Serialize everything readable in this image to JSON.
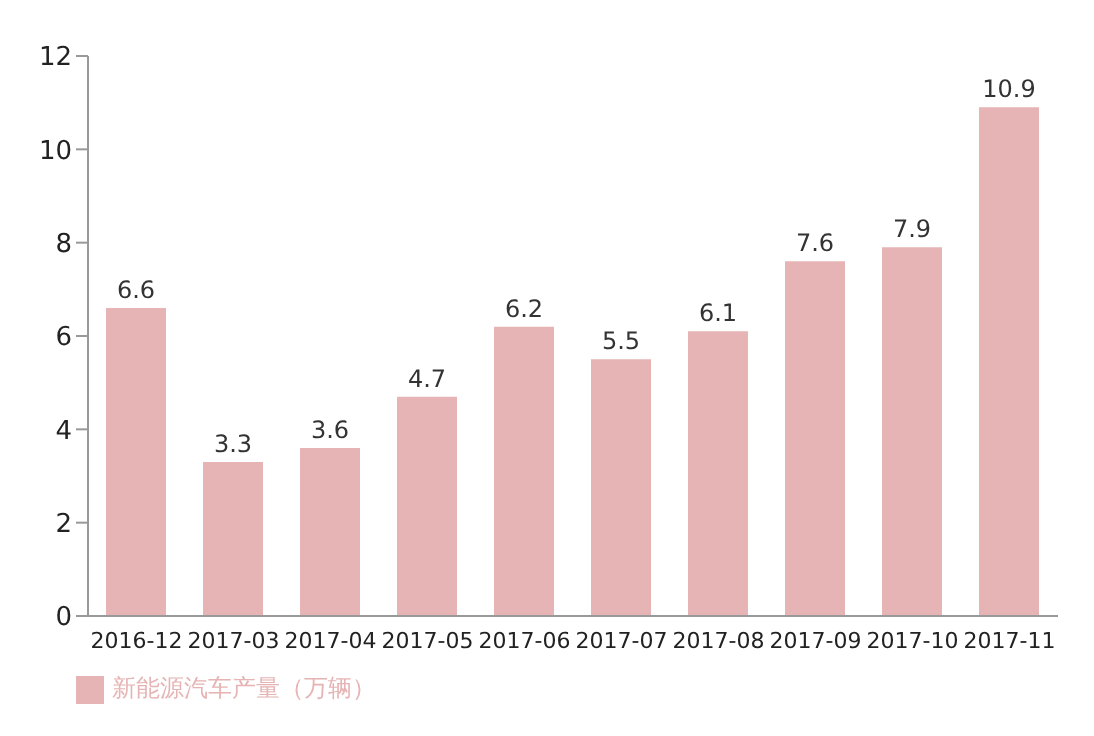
{
  "chart_data": {
    "type": "bar",
    "categories": [
      "2016-12",
      "2017-03",
      "2017-04",
      "2017-05",
      "2017-06",
      "2017-07",
      "2017-08",
      "2017-09",
      "2017-10",
      "2017-11"
    ],
    "series": [
      {
        "name": "新能源汽车产量（万辆）",
        "color": "#e6b4b4",
        "values": [
          6.6,
          3.3,
          3.6,
          4.7,
          6.2,
          5.5,
          6.1,
          7.6,
          7.9,
          10.9
        ]
      }
    ],
    "ylim": [
      0,
      12
    ],
    "yticks": [
      0,
      2,
      4,
      6,
      8,
      10,
      12
    ],
    "grid": false,
    "legend": "bottom left",
    "data_labels": true
  }
}
